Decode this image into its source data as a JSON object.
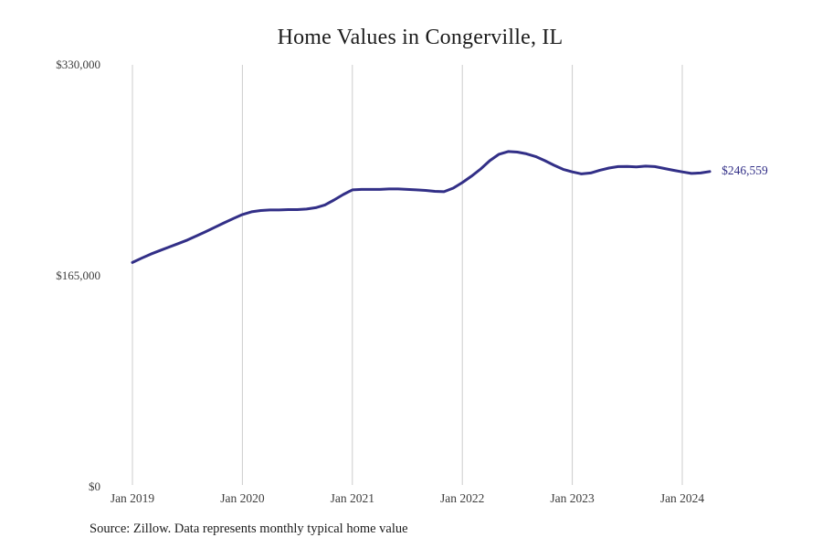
{
  "page": {
    "title": "Home Values in Congerville, IL",
    "source_note": "Source: Zillow. Data represents monthly typical home value"
  },
  "annotation": {
    "latest_value_label": "$246,559"
  },
  "colors": {
    "line": "#322f87",
    "grid": "#cccccc",
    "title_text": "#1c1c1c",
    "tick_text": "#3d3d3d",
    "source_text": "#1c1c1c"
  },
  "chart_data": {
    "type": "line",
    "title": "Home Values in Congerville, IL",
    "series_name": "Monthly typical home value",
    "x": [
      "Jan 2019",
      "Feb 2019",
      "Mar 2019",
      "Apr 2019",
      "May 2019",
      "Jun 2019",
      "Jul 2019",
      "Aug 2019",
      "Sep 2019",
      "Oct 2019",
      "Nov 2019",
      "Dec 2019",
      "Jan 2020",
      "Feb 2020",
      "Mar 2020",
      "Apr 2020",
      "May 2020",
      "Jun 2020",
      "Jul 2020",
      "Aug 2020",
      "Sep 2020",
      "Oct 2020",
      "Nov 2020",
      "Dec 2020",
      "Jan 2021",
      "Feb 2021",
      "Mar 2021",
      "Apr 2021",
      "May 2021",
      "Jun 2021",
      "Jul 2021",
      "Aug 2021",
      "Sep 2021",
      "Oct 2021",
      "Nov 2021",
      "Dec 2021",
      "Jan 2022",
      "Feb 2022",
      "Mar 2022",
      "Apr 2022",
      "May 2022",
      "Jun 2022",
      "Jul 2022",
      "Aug 2022",
      "Sep 2022",
      "Oct 2022",
      "Nov 2022",
      "Dec 2022",
      "Jan 2023",
      "Feb 2023",
      "Mar 2023",
      "Apr 2023",
      "May 2023",
      "Jun 2023",
      "Jul 2023",
      "Aug 2023",
      "Sep 2023",
      "Oct 2023",
      "Nov 2023",
      "Dec 2023",
      "Jan 2024",
      "Feb 2024",
      "Mar 2024",
      "Apr 2024"
    ],
    "values": [
      175400,
      178800,
      182000,
      184800,
      187500,
      190200,
      193000,
      196200,
      199600,
      203000,
      206400,
      209800,
      212900,
      215100,
      216100,
      216500,
      216500,
      216800,
      216800,
      217200,
      218300,
      220400,
      224300,
      228600,
      232200,
      232600,
      232600,
      232600,
      232900,
      232900,
      232600,
      232200,
      231800,
      231100,
      230800,
      233600,
      237900,
      242900,
      248600,
      255100,
      260100,
      262200,
      261800,
      260400,
      258300,
      255100,
      251500,
      248300,
      246300,
      244700,
      245400,
      247600,
      249300,
      250400,
      250600,
      250200,
      250800,
      250400,
      249000,
      247600,
      246300,
      245100,
      245400,
      246559
    ],
    "xlabel": "",
    "ylabel": "",
    "ylim": [
      0,
      330000
    ],
    "y_ticks": [
      {
        "value": 0,
        "label": "$0"
      },
      {
        "value": 165000,
        "label": "$165,000"
      },
      {
        "value": 330000,
        "label": "$330,000"
      }
    ],
    "x_tick_indices": [
      0,
      12,
      24,
      36,
      48,
      60
    ],
    "x_tick_labels": [
      "Jan 2019",
      "Jan 2020",
      "Jan 2021",
      "Jan 2022",
      "Jan 2023",
      "Jan 2024"
    ],
    "grid": "vertical-only",
    "legend": "none",
    "line_color": "#322f87",
    "end_annotation": "$246,559"
  }
}
